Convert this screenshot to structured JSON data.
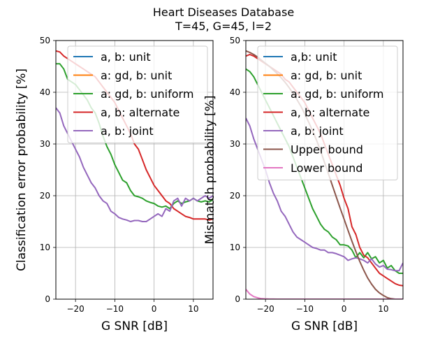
{
  "figure": {
    "title_line1": "Heart Diseases Database",
    "title_line2": "T=45, G=45, l=2"
  },
  "chart_data": [
    {
      "type": "line",
      "xlabel": "G SNR [dB]",
      "ylabel": "Classification error probability [%]",
      "xlim": [
        -25,
        15
      ],
      "ylim": [
        0,
        50
      ],
      "xticks": [
        -20,
        -10,
        0,
        10
      ],
      "xtick_labels": [
        "−20",
        "−10",
        "0",
        "10"
      ],
      "yticks": [
        0,
        10,
        20,
        30,
        40,
        50
      ],
      "ytick_labels": [
        "0",
        "10",
        "20",
        "30",
        "40",
        "50"
      ],
      "grid": true,
      "legend_position": "top-right",
      "series": [
        {
          "name": "a, b: unit",
          "color": "#1f77b4",
          "x": [],
          "y": []
        },
        {
          "name": "a: gd, b: unit",
          "color": "#ff7f0e",
          "x": [],
          "y": []
        },
        {
          "name": "a: gd, b: uniform",
          "color": "#2ca02c",
          "x": [
            -25,
            -24,
            -23,
            -22,
            -21,
            -20,
            -19,
            -18,
            -17,
            -16,
            -15,
            -14,
            -13,
            -12,
            -11,
            -10,
            -9,
            -8,
            -7,
            -6,
            -5,
            -4,
            -3,
            -2,
            -1,
            0,
            1,
            2,
            3,
            4,
            5,
            6,
            7,
            8,
            9,
            10,
            11,
            12,
            13,
            14,
            15
          ],
          "y": [
            45.5,
            45.5,
            44.5,
            42.5,
            42,
            41.5,
            40.5,
            39.5,
            38.5,
            37,
            36,
            34,
            31.5,
            29.5,
            28,
            26,
            24.5,
            23,
            22.5,
            21,
            20,
            19.8,
            19.5,
            19,
            18.7,
            18.5,
            18,
            17.8,
            18,
            17.5,
            18.5,
            19,
            18.5,
            18.8,
            19,
            19.5,
            19,
            18.8,
            19,
            18.8,
            19.2
          ]
        },
        {
          "name": "a, b: alternate",
          "color": "#d62728",
          "x": [
            -25,
            -24,
            -23,
            -22,
            -21,
            -20,
            -19,
            -18,
            -17,
            -16,
            -15,
            -14,
            -13,
            -12,
            -11,
            -10,
            -9,
            -8,
            -7,
            -6,
            -5,
            -4,
            -3,
            -2,
            -1,
            0,
            1,
            2,
            3,
            4,
            5,
            6,
            7,
            8,
            9,
            10,
            11,
            12,
            13,
            14,
            15
          ],
          "y": [
            48,
            47.8,
            47,
            46.5,
            46,
            45.5,
            45,
            44.5,
            44,
            43.5,
            43,
            42,
            41,
            40,
            39,
            38,
            36.5,
            35,
            33.5,
            32,
            30,
            29,
            27,
            25,
            23.5,
            22,
            21,
            20,
            19,
            18.5,
            17.5,
            17,
            16.5,
            16,
            15.8,
            15.5,
            15.5,
            15.5,
            15.5,
            15.3,
            15.5
          ]
        },
        {
          "name": "a, b: joint",
          "color": "#9467bd",
          "x": [
            -25,
            -24,
            -23,
            -22,
            -21,
            -20,
            -19,
            -18,
            -17,
            -16,
            -15,
            -14,
            -13,
            -12,
            -11,
            -10,
            -9,
            -8,
            -7,
            -6,
            -5,
            -4,
            -3,
            -2,
            -1,
            0,
            1,
            2,
            3,
            4,
            5,
            6,
            7,
            8,
            9,
            10,
            11,
            12,
            13,
            14,
            15
          ],
          "y": [
            37,
            36,
            33.5,
            32,
            30.5,
            29,
            27.5,
            25.5,
            24,
            22.5,
            21.5,
            20,
            19,
            18.5,
            17,
            16.5,
            15.8,
            15.5,
            15.3,
            15,
            15.2,
            15.2,
            15,
            15,
            15.5,
            16,
            16.5,
            16,
            17.5,
            17,
            19,
            19.5,
            18,
            19.5,
            19,
            19.5,
            19,
            19.5,
            20,
            19.5,
            20
          ]
        }
      ]
    },
    {
      "type": "line",
      "xlabel": "G SNR [dB]",
      "ylabel": "Mismatch probability [%]",
      "xlim": [
        -25,
        15
      ],
      "ylim": [
        0,
        50
      ],
      "xticks": [
        -20,
        -10,
        0,
        10
      ],
      "xtick_labels": [
        "−20",
        "−10",
        "0",
        "10"
      ],
      "yticks": [
        0,
        10,
        20,
        30,
        40,
        50
      ],
      "ytick_labels": [
        "0",
        "10",
        "20",
        "30",
        "40",
        "50"
      ],
      "grid": true,
      "legend_position": "top-right",
      "series": [
        {
          "name": "a,b: unit",
          "color": "#1f77b4",
          "x": [],
          "y": []
        },
        {
          "name": "a: gd, b: unit",
          "color": "#ff7f0e",
          "x": [],
          "y": []
        },
        {
          "name": "a: gd, b: uniform",
          "color": "#2ca02c",
          "x": [
            -25,
            -24,
            -23,
            -22,
            -21,
            -20,
            -19,
            -18,
            -17,
            -16,
            -15,
            -14,
            -13,
            -12,
            -11,
            -10,
            -9,
            -8,
            -7,
            -6,
            -5,
            -4,
            -3,
            -2,
            -1,
            0,
            1,
            2,
            3,
            4,
            5,
            6,
            7,
            8,
            9,
            10,
            11,
            12,
            13,
            14,
            15
          ],
          "y": [
            44.5,
            44,
            43,
            41.5,
            40,
            38.5,
            37,
            35.5,
            34,
            32.5,
            31,
            29.5,
            27.5,
            25.5,
            23.5,
            21.5,
            19.5,
            17.5,
            16,
            14.5,
            13.5,
            13,
            12,
            11.5,
            10.5,
            10.5,
            10.3,
            9.5,
            8,
            9,
            8,
            9,
            7.8,
            8.2,
            7,
            7.5,
            6,
            6.5,
            5.5,
            5,
            5
          ]
        },
        {
          "name": "a, b: alternate",
          "color": "#d62728",
          "x": [
            -25,
            -24,
            -23,
            -22,
            -21,
            -20,
            -19,
            -18,
            -17,
            -16,
            -15,
            -14,
            -13,
            -12,
            -11,
            -10,
            -9,
            -8,
            -7,
            -6,
            -5,
            -4,
            -3,
            -2,
            -1,
            0,
            1,
            2,
            3,
            4,
            5,
            6,
            7,
            8,
            9,
            10,
            11,
            12,
            13,
            14,
            15
          ],
          "y": [
            47,
            47.3,
            47,
            46.5,
            46,
            45.5,
            45,
            44.5,
            44,
            43.5,
            42.5,
            42,
            41,
            40,
            39,
            38,
            36.5,
            35,
            33.5,
            32,
            30,
            28,
            26,
            24,
            22,
            19.5,
            17.5,
            14,
            12.5,
            10,
            8.5,
            8,
            7,
            6,
            5,
            4.5,
            4,
            3.5,
            3,
            2.7,
            2.6
          ]
        },
        {
          "name": "a, b: joint",
          "color": "#9467bd",
          "x": [
            -25,
            -24,
            -23,
            -22,
            -21,
            -20,
            -19,
            -18,
            -17,
            -16,
            -15,
            -14,
            -13,
            -12,
            -11,
            -10,
            -9,
            -8,
            -7,
            -6,
            -5,
            -4,
            -3,
            -2,
            -1,
            0,
            1,
            2,
            3,
            4,
            5,
            6,
            7,
            8,
            9,
            10,
            11,
            12,
            13,
            14,
            15
          ],
          "y": [
            35,
            33.5,
            31,
            29,
            27,
            25,
            22.5,
            20.5,
            19,
            17,
            16,
            14.5,
            13,
            12,
            11.5,
            11,
            10.5,
            10,
            9.8,
            9.5,
            9.5,
            9,
            9,
            8.8,
            8.5,
            8.2,
            7.5,
            7.8,
            8,
            7.8,
            7.5,
            7,
            7.8,
            6.8,
            6.2,
            6.5,
            5.8,
            5.7,
            5.5,
            5.5,
            7
          ]
        },
        {
          "name": "Upper bound",
          "color": "#8c564b",
          "x": [
            -25,
            -24,
            -23,
            -22,
            -21,
            -20,
            -19,
            -18,
            -17,
            -16,
            -15,
            -14,
            -13,
            -12,
            -11,
            -10,
            -9,
            -8,
            -7,
            -6,
            -5,
            -4,
            -3,
            -2,
            -1,
            0,
            1,
            2,
            3,
            4,
            5,
            6,
            7,
            8,
            9,
            10,
            11,
            12,
            13,
            14,
            15
          ],
          "y": [
            48,
            47.7,
            47.3,
            46.8,
            46.2,
            45.6,
            45,
            44.3,
            43.6,
            42.8,
            41.9,
            40.9,
            39.8,
            38.6,
            37.3,
            35.8,
            34.2,
            32.5,
            30.7,
            28.7,
            26.5,
            24.3,
            22,
            19.8,
            17.6,
            15.5,
            13.3,
            11.2,
            9.2,
            7.3,
            5.6,
            4.1,
            2.9,
            1.9,
            1.2,
            0.7,
            0.3,
            0.1,
            0,
            0,
            0
          ]
        },
        {
          "name": "Lower bound",
          "color": "#e377c2",
          "x": [
            -25,
            -24,
            -23,
            -22,
            -21,
            -20,
            -19,
            -18,
            -17,
            -16,
            -15,
            -14,
            -13,
            -12,
            -11,
            -10,
            -5,
            0,
            5,
            10,
            15
          ],
          "y": [
            1.9,
            1.0,
            0.5,
            0.25,
            0.1,
            0.05,
            0.02,
            0.01,
            0,
            0,
            0,
            0,
            0,
            0,
            0,
            0,
            0,
            0,
            0,
            0,
            0
          ]
        }
      ]
    }
  ]
}
